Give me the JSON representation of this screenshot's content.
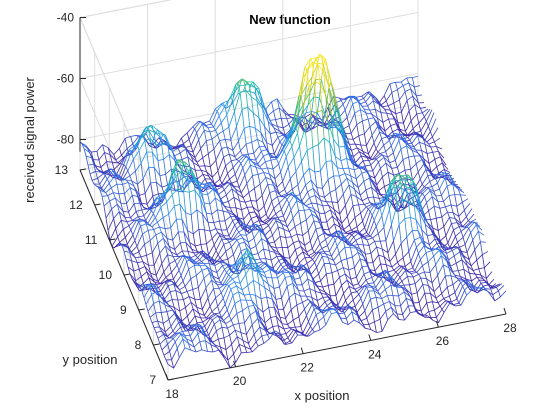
{
  "chart_data": {
    "type": "surface-mesh",
    "title": "New function",
    "xlabel": "x position",
    "ylabel": "y position",
    "zlabel": "received signal power",
    "xlim": [
      18,
      28
    ],
    "ylim": [
      7,
      13
    ],
    "zlim": [
      -90,
      -40
    ],
    "x_ticks": [
      "18",
      "20",
      "22",
      "24",
      "26",
      "28"
    ],
    "y_ticks": [
      "7",
      "8",
      "9",
      "10",
      "11",
      "12",
      "13"
    ],
    "z_ticks": [
      "-40",
      "-60",
      "-80"
    ],
    "colormap": "parula",
    "grid": true,
    "peaks": [
      {
        "x": 24.0,
        "y": 11.3,
        "z": -56
      },
      {
        "x": 24.6,
        "y": 11.6,
        "z": -58
      },
      {
        "x": 22.8,
        "y": 12.6,
        "z": -63
      },
      {
        "x": 20.0,
        "y": 10.8,
        "z": -66
      },
      {
        "x": 26.0,
        "y": 9.3,
        "z": -68
      },
      {
        "x": 21.0,
        "y": 8.5,
        "z": -70
      },
      {
        "x": 19.6,
        "y": 12.2,
        "z": -72
      }
    ],
    "baseline_z": -84
  },
  "colors": {
    "low": "#3e26a8",
    "mid": "#16bba9",
    "high": "#f8e621"
  }
}
